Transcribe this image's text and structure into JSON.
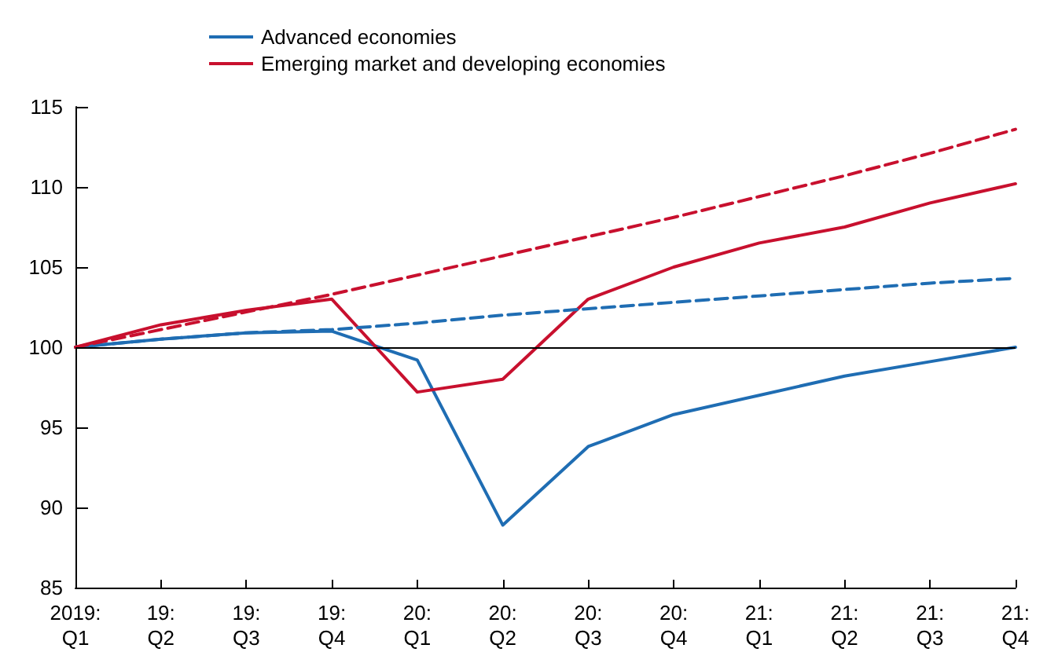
{
  "chart_data": {
    "type": "line",
    "categories": [
      "2019:\nQ1",
      "19:\nQ2",
      "19:\nQ3",
      "19:\nQ4",
      "20:\nQ1",
      "20:\nQ2",
      "20:\nQ3",
      "20:\nQ4",
      "21:\nQ1",
      "21:\nQ2",
      "21:\nQ3",
      "21:\nQ4"
    ],
    "series": [
      {
        "name": "Advanced economies",
        "color": "#1f6db3",
        "line_style": "solid",
        "values": [
          100,
          100.5,
          100.9,
          101,
          99.2,
          88.9,
          93.8,
          95.8,
          97,
          98.2,
          99.1,
          100
        ]
      },
      {
        "name": "Emerging market and developing economies",
        "color": "#c8102e",
        "line_style": "solid",
        "values": [
          100,
          101.4,
          102.3,
          103,
          97.2,
          98,
          103,
          105,
          106.5,
          107.5,
          109,
          110.2
        ]
      },
      {
        "color": "#1f6db3",
        "line_style": "dashed",
        "values": [
          100,
          100.5,
          100.9,
          101.1,
          101.5,
          102,
          102.4,
          102.8,
          103.2,
          103.6,
          104,
          104.3
        ]
      },
      {
        "color": "#c8102e",
        "line_style": "dashed",
        "values": [
          100,
          101.1,
          102.2,
          103.3,
          104.5,
          105.7,
          106.9,
          108.1,
          109.4,
          110.7,
          112.1,
          113.6
        ]
      }
    ],
    "ylim": [
      85,
      115
    ],
    "yticks": [
      85,
      90,
      95,
      100,
      105,
      110,
      115
    ],
    "ref_lines": [
      {
        "axis": "y",
        "value": 100,
        "color": "#000000"
      }
    ],
    "grid": false,
    "legend": "top left",
    "marker": "none"
  }
}
